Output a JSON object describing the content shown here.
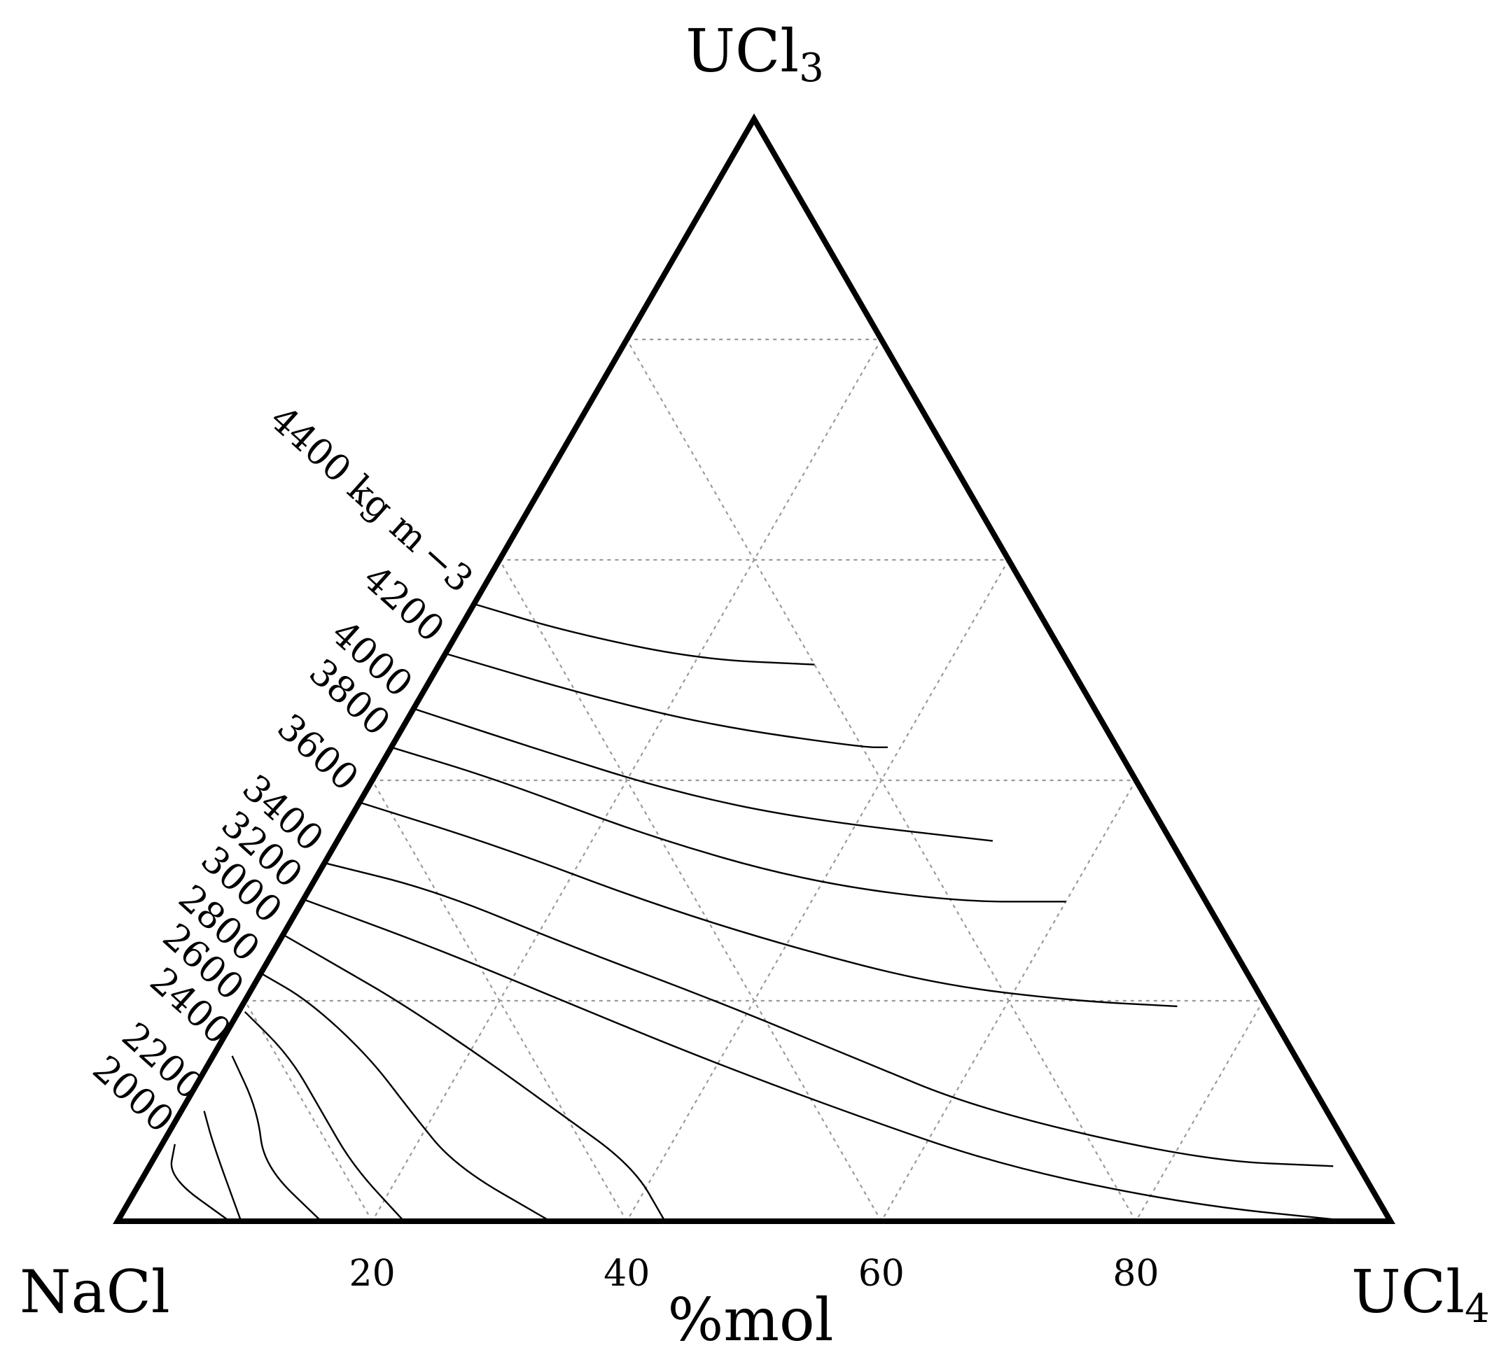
{
  "chart_data": {
    "type": "ternary-contour",
    "vertices": {
      "left": "NaCl",
      "top_base": "UCl",
      "top_sub": "3",
      "right_base": "UCl",
      "right_sub": "4"
    },
    "axis_title": "%mol",
    "ticks": [
      "20",
      "40",
      "60",
      "80"
    ],
    "tick_values": [
      20,
      40,
      60,
      80
    ],
    "grid": true,
    "contours": [
      {
        "label": "2000",
        "level": 2000,
        "points": [
          [
            0.92,
            0.07
          ],
          [
            0.94,
            0.04
          ],
          [
            0.912,
            0.0
          ]
        ]
      },
      {
        "label": "2200",
        "level": 2200,
        "points": [
          [
            0.882,
            0.1
          ],
          [
            0.89,
            0.07
          ],
          [
            0.903,
            0.0
          ]
        ]
      },
      {
        "label": "2400",
        "level": 2400,
        "points": [
          [
            0.835,
            0.15
          ],
          [
            0.84,
            0.1
          ],
          [
            0.86,
            0.05
          ],
          [
            0.84,
            0.0
          ]
        ]
      },
      {
        "label": "2600",
        "level": 2600,
        "points": [
          [
            0.805,
            0.19
          ],
          [
            0.79,
            0.15
          ],
          [
            0.79,
            0.1
          ],
          [
            0.79,
            0.05
          ],
          [
            0.775,
            0.0
          ]
        ]
      },
      {
        "label": "2800",
        "level": 2800,
        "points": [
          [
            0.775,
            0.225
          ],
          [
            0.75,
            0.2
          ],
          [
            0.728,
            0.15
          ],
          [
            0.72,
            0.1
          ],
          [
            0.71,
            0.05
          ],
          [
            0.66,
            0.0
          ]
        ]
      },
      {
        "label": "3000",
        "level": 3000,
        "points": [
          [
            0.74,
            0.26
          ],
          [
            0.71,
            0.23
          ],
          [
            0.68,
            0.2
          ],
          [
            0.64,
            0.15
          ],
          [
            0.605,
            0.1
          ],
          [
            0.57,
            0.05
          ],
          [
            0.57,
            0.0
          ]
        ]
      },
      {
        "label": "3200",
        "level": 3200,
        "points": [
          [
            0.708,
            0.292
          ],
          [
            0.63,
            0.25
          ],
          [
            0.55,
            0.2
          ],
          [
            0.47,
            0.15
          ],
          [
            0.38,
            0.1
          ],
          [
            0.28,
            0.05
          ],
          [
            0.15,
            0.015
          ],
          [
            0.03,
            0.0
          ]
        ]
      },
      {
        "label": "3400",
        "level": 3400,
        "points": [
          [
            0.675,
            0.325
          ],
          [
            0.6,
            0.3
          ],
          [
            0.52,
            0.25
          ],
          [
            0.43,
            0.2
          ],
          [
            0.35,
            0.15
          ],
          [
            0.27,
            0.1
          ],
          [
            0.12,
            0.055
          ],
          [
            0.02,
            0.05
          ]
        ]
      },
      {
        "label": "3600",
        "level": 3600,
        "points": [
          [
            0.62,
            0.38
          ],
          [
            0.53,
            0.34
          ],
          [
            0.44,
            0.29
          ],
          [
            0.35,
            0.25
          ],
          [
            0.25,
            0.215
          ],
          [
            0.15,
            0.2
          ],
          [
            0.07,
            0.195
          ]
        ]
      },
      {
        "label": "3800",
        "level": 3800,
        "points": [
          [
            0.57,
            0.43
          ],
          [
            0.5,
            0.4
          ],
          [
            0.41,
            0.35
          ],
          [
            0.31,
            0.31
          ],
          [
            0.2,
            0.29
          ],
          [
            0.11,
            0.29
          ]
        ]
      },
      {
        "label": "4000",
        "level": 4000,
        "points": [
          [
            0.535,
            0.465
          ],
          [
            0.46,
            0.43
          ],
          [
            0.37,
            0.39
          ],
          [
            0.28,
            0.365
          ],
          [
            0.14,
            0.345
          ]
        ]
      },
      {
        "label": "4200",
        "level": 4200,
        "points": [
          [
            0.485,
            0.515
          ],
          [
            0.4,
            0.48
          ],
          [
            0.31,
            0.45
          ],
          [
            0.2,
            0.43
          ],
          [
            0.18,
            0.43
          ]
        ]
      },
      {
        "label": "4400 kg m −3",
        "level": 4400,
        "points": [
          [
            0.44,
            0.56
          ],
          [
            0.38,
            0.535
          ],
          [
            0.29,
            0.51
          ],
          [
            0.2,
            0.505
          ]
        ]
      }
    ]
  }
}
